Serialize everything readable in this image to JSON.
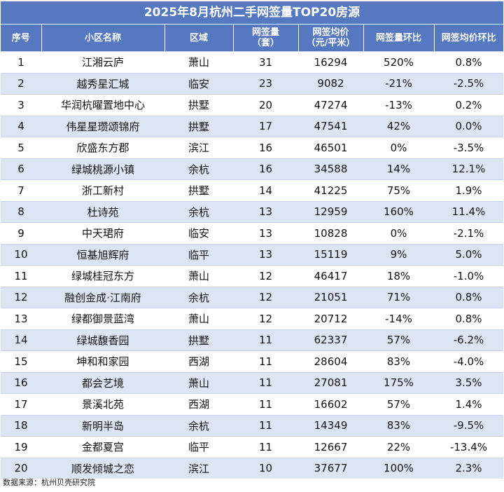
{
  "title": "2025年8月杭州二手网签量TOP20房源",
  "headers": {
    "rank": "序号",
    "name": "小区名称",
    "district": "区域",
    "volume_line1": "网签量",
    "volume_line2": "（套）",
    "price_line1": "网签均价",
    "price_line2": "（元/平米）",
    "volume_mom": "网签量环比",
    "price_mom": "网签均价环比"
  },
  "rows": [
    {
      "rank": "1",
      "name": "江湘云庐",
      "district": "萧山",
      "volume": "31",
      "price": "16294",
      "volume_mom": "520%",
      "price_mom": "0.8%"
    },
    {
      "rank": "2",
      "name": "越秀星汇城",
      "district": "临安",
      "volume": "23",
      "price": "9082",
      "volume_mom": "-21%",
      "price_mom": "-2.5%"
    },
    {
      "rank": "3",
      "name": "华润杭曜置地中心",
      "district": "拱墅",
      "volume": "20",
      "price": "47274",
      "volume_mom": "-13%",
      "price_mom": "0.2%"
    },
    {
      "rank": "4",
      "name": "伟星星瓒颂锦府",
      "district": "拱墅",
      "volume": "17",
      "price": "47541",
      "volume_mom": "42%",
      "price_mom": "0.0%"
    },
    {
      "rank": "5",
      "name": "欣盛东方郡",
      "district": "滨江",
      "volume": "16",
      "price": "46501",
      "volume_mom": "0%",
      "price_mom": "-3.5%"
    },
    {
      "rank": "6",
      "name": "绿城桃源小镇",
      "district": "余杭",
      "volume": "16",
      "price": "34588",
      "volume_mom": "14%",
      "price_mom": "12.1%"
    },
    {
      "rank": "7",
      "name": "浙工新村",
      "district": "拱墅",
      "volume": "14",
      "price": "41225",
      "volume_mom": "75%",
      "price_mom": "1.9%"
    },
    {
      "rank": "8",
      "name": "杜诗苑",
      "district": "余杭",
      "volume": "13",
      "price": "12959",
      "volume_mom": "160%",
      "price_mom": "11.4%"
    },
    {
      "rank": "9",
      "name": "中天珺府",
      "district": "临安",
      "volume": "13",
      "price": "10828",
      "volume_mom": "0%",
      "price_mom": "-2.1%"
    },
    {
      "rank": "10",
      "name": "恒基旭辉府",
      "district": "临平",
      "volume": "13",
      "price": "15119",
      "volume_mom": "9%",
      "price_mom": "5.0%"
    },
    {
      "rank": "11",
      "name": "绿城桂冠东方",
      "district": "萧山",
      "volume": "12",
      "price": "46417",
      "volume_mom": "18%",
      "price_mom": "-1.0%"
    },
    {
      "rank": "12",
      "name": "融创金成·江南府",
      "district": "余杭",
      "volume": "12",
      "price": "21051",
      "volume_mom": "71%",
      "price_mom": "0.8%"
    },
    {
      "rank": "13",
      "name": "绿都御景蓝湾",
      "district": "萧山",
      "volume": "12",
      "price": "20712",
      "volume_mom": "-14%",
      "price_mom": "0.8%"
    },
    {
      "rank": "14",
      "name": "绿城馥香园",
      "district": "拱墅",
      "volume": "11",
      "price": "62337",
      "volume_mom": "57%",
      "price_mom": "-6.2%"
    },
    {
      "rank": "15",
      "name": "坤和和家园",
      "district": "西湖",
      "volume": "11",
      "price": "28604",
      "volume_mom": "83%",
      "price_mom": "-4.0%"
    },
    {
      "rank": "16",
      "name": "都会艺境",
      "district": "萧山",
      "volume": "11",
      "price": "27081",
      "volume_mom": "175%",
      "price_mom": "3.5%"
    },
    {
      "rank": "17",
      "name": "景溪北苑",
      "district": "西湖",
      "volume": "11",
      "price": "16602",
      "volume_mom": "57%",
      "price_mom": "1.4%"
    },
    {
      "rank": "18",
      "name": "新明半岛",
      "district": "余杭",
      "volume": "11",
      "price": "14349",
      "volume_mom": "83%",
      "price_mom": "-9.5%"
    },
    {
      "rank": "19",
      "name": "金都夏宫",
      "district": "临平",
      "volume": "11",
      "price": "12667",
      "volume_mom": "22%",
      "price_mom": "-13.4%"
    },
    {
      "rank": "20",
      "name": "顺发倾城之恋",
      "district": "滨江",
      "volume": "10",
      "price": "37677",
      "volume_mom": "100%",
      "price_mom": "2.3%"
    }
  ],
  "source": "数据来源：杭州贝壳研究院",
  "colors": {
    "header_bg": "#5578c0",
    "stripe": "#dde5f4"
  }
}
